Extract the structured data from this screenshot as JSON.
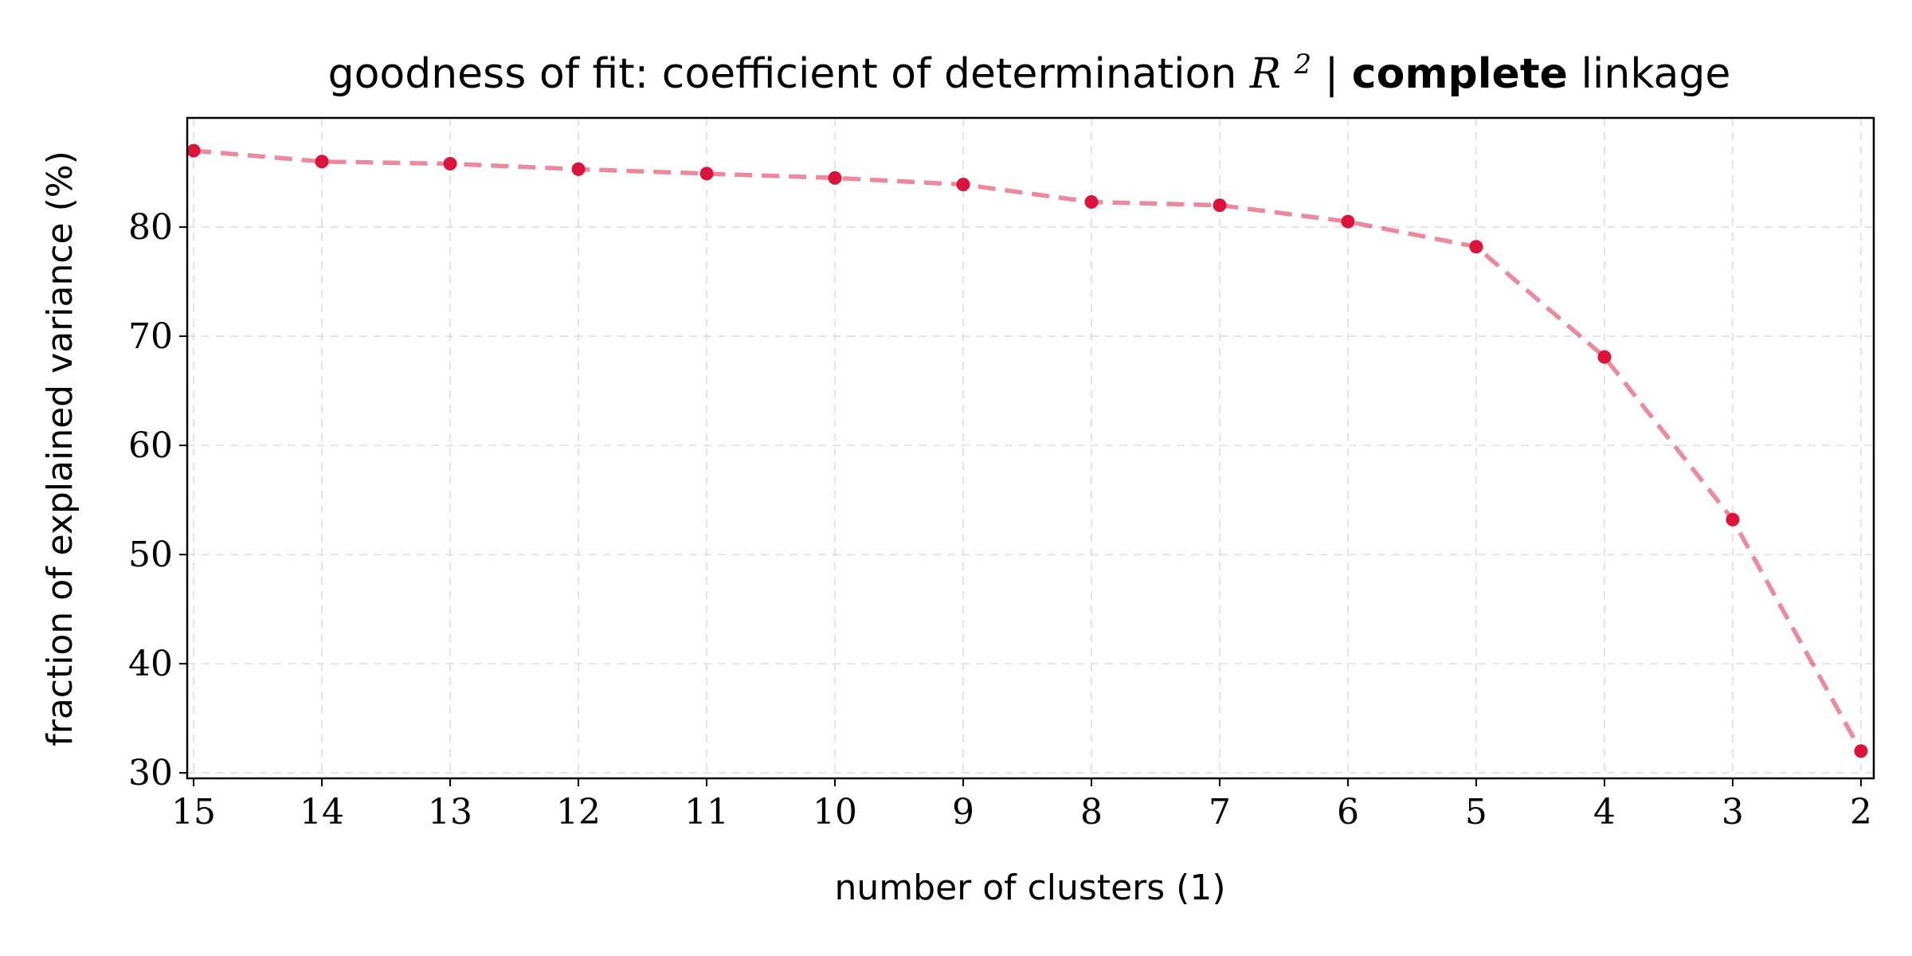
{
  "chart_data": {
    "type": "line",
    "title": {
      "prefix": "goodness of fit: coefficient of determination ",
      "math_base": "R",
      "math_sup": "2",
      "separator": " | ",
      "emphasis": "complete",
      "suffix": " linkage"
    },
    "xlabel": "number of clusters (1)",
    "ylabel": "fraction of explained variance (%)",
    "x": [
      15,
      14,
      13,
      12,
      11,
      10,
      9,
      8,
      7,
      6,
      5,
      4,
      3,
      2
    ],
    "x_reversed": true,
    "xlim": [
      15.05,
      1.9
    ],
    "ylim": [
      29.5,
      90
    ],
    "yticks": [
      30,
      40,
      50,
      60,
      70,
      80
    ],
    "series": [
      {
        "values": [
          87.0,
          86.0,
          85.8,
          85.3,
          84.9,
          84.5,
          83.9,
          82.3,
          82.0,
          80.5,
          78.2,
          68.1,
          53.2,
          32.0
        ],
        "color": "#dc143c",
        "line_style": "dashed",
        "marker": "circle"
      }
    ],
    "grid": true,
    "legend": "none"
  }
}
